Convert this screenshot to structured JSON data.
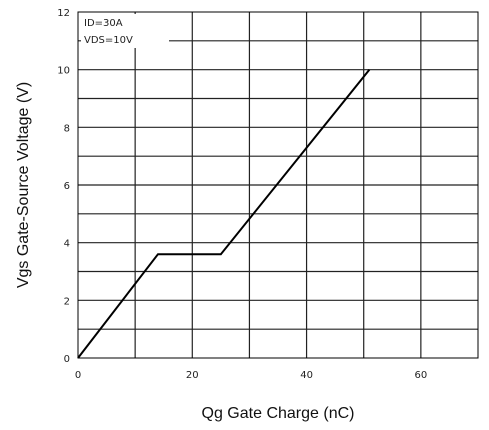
{
  "chart_data": {
    "type": "line",
    "xlabel": "Qg Gate Charge (nC)",
    "ylabel": "Vgs Gate-Source Voltage (V)",
    "xlim": [
      0,
      70
    ],
    "ylim": [
      0,
      12
    ],
    "x_ticks": [
      0,
      20,
      40,
      60
    ],
    "x_tick_labels": [
      "0",
      "20",
      "40",
      "60"
    ],
    "y_ticks": [
      0,
      2,
      4,
      6,
      8,
      10,
      12
    ],
    "y_tick_labels": [
      "0",
      "2",
      "4",
      "6",
      "8",
      "10",
      "12"
    ],
    "grid": true,
    "annotations": [
      "ID=30A",
      "VDS=10V"
    ],
    "series": [
      {
        "x": [
          0,
          14,
          25,
          51
        ],
        "y": [
          0,
          3.6,
          3.6,
          10
        ],
        "color": "#000000"
      }
    ]
  }
}
